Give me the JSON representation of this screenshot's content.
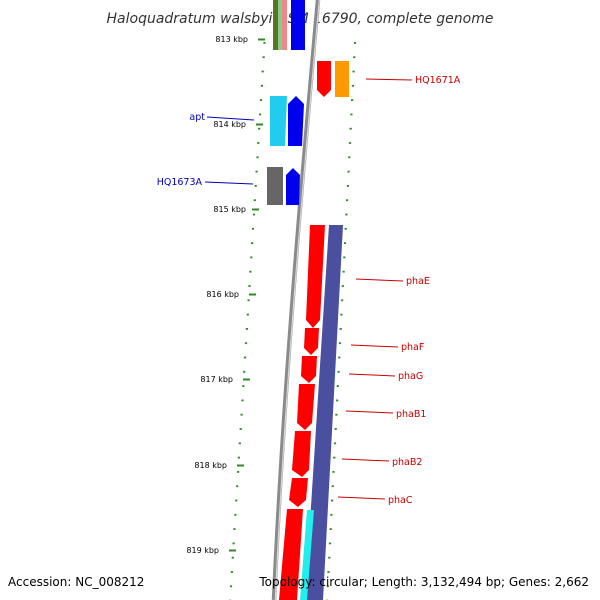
{
  "title": "Haloquadratum walsbyi DSM 16790, complete genome",
  "accession": "Accession: NC_008212",
  "topology": "Topology: circular; Length: 3,132,494 bp; Genes: 2,662",
  "colors": {
    "label_forward": "#0000bb",
    "label_reverse": "#cc0000",
    "backbone": "#888888",
    "tick": "#2e8b22",
    "cds_red": "#ff0000",
    "cds_blue": "#0000ee",
    "cds_cyan": "#22ccee",
    "cds_gray": "#666666",
    "cds_orange": "#ff9900",
    "cds_purple": "#4a4fa0",
    "cds_green": "#557722",
    "cds_pink": "#ee8888"
  },
  "kbp_labels": [
    "813 kbp",
    "814 kbp",
    "815 kbp",
    "816 kbp",
    "817 kbp",
    "818 kbp",
    "819 kbp"
  ],
  "gene_labels": [
    {
      "name": "HQ1671A",
      "strand": "reverse"
    },
    {
      "name": "apt",
      "strand": "forward"
    },
    {
      "name": "HQ1673A",
      "strand": "forward"
    },
    {
      "name": "phaE",
      "strand": "reverse"
    },
    {
      "name": "phaF",
      "strand": "reverse"
    },
    {
      "name": "phaG",
      "strand": "reverse"
    },
    {
      "name": "phaB1",
      "strand": "reverse"
    },
    {
      "name": "phaB2",
      "strand": "reverse"
    },
    {
      "name": "phaC",
      "strand": "reverse"
    }
  ]
}
